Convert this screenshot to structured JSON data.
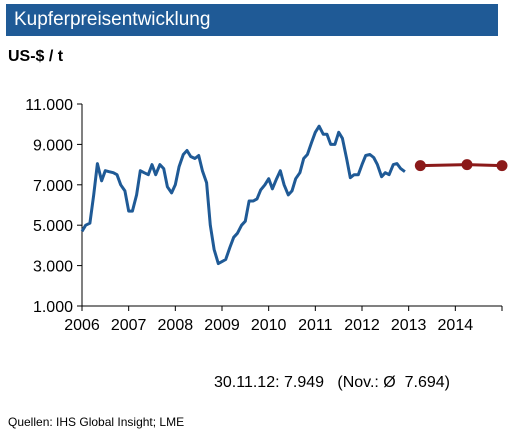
{
  "title": "Kupferpreisentwicklung",
  "unit_label": "US-$ / t",
  "note": "30.11.12: 7.949   (Nov.: Ø  7.694)",
  "source": "Quellen: IHS Global Insight; LME",
  "colors": {
    "title_bg": "#1f5a96",
    "history": "#1f5a96",
    "forecast": "#8b1a1a"
  },
  "chart_data": {
    "type": "line",
    "title": "Kupferpreisentwicklung",
    "ylabel": "US-$ / t",
    "xlim": [
      2006,
      2015
    ],
    "ylim": [
      1000,
      11000
    ],
    "x_ticks": [
      "2006",
      "2007",
      "2008",
      "2009",
      "2010",
      "2011",
      "2012",
      "2013",
      "2014"
    ],
    "y_ticks": [
      "1.000",
      "3.000",
      "5.000",
      "7.000",
      "9.000",
      "11.000"
    ],
    "y_tick_values": [
      1000,
      3000,
      5000,
      7000,
      9000,
      11000
    ],
    "grid": false,
    "series": [
      {
        "style": "line",
        "x": [
          2006.0,
          2006.08,
          2006.17,
          2006.25,
          2006.33,
          2006.42,
          2006.5,
          2006.58,
          2006.67,
          2006.75,
          2006.83,
          2006.92,
          2007.0,
          2007.08,
          2007.17,
          2007.25,
          2007.33,
          2007.42,
          2007.5,
          2007.58,
          2007.67,
          2007.75,
          2007.83,
          2007.92,
          2008.0,
          2008.08,
          2008.17,
          2008.25,
          2008.33,
          2008.42,
          2008.5,
          2008.58,
          2008.67,
          2008.75,
          2008.83,
          2008.92,
          2009.0,
          2009.08,
          2009.17,
          2009.25,
          2009.33,
          2009.42,
          2009.5,
          2009.58,
          2009.67,
          2009.75,
          2009.83,
          2009.92,
          2010.0,
          2010.08,
          2010.17,
          2010.25,
          2010.33,
          2010.42,
          2010.5,
          2010.58,
          2010.67,
          2010.75,
          2010.83,
          2010.92,
          2011.0,
          2011.08,
          2011.17,
          2011.25,
          2011.33,
          2011.42,
          2011.5,
          2011.58,
          2011.67,
          2011.75,
          2011.83,
          2011.92,
          2012.0,
          2012.08,
          2012.17,
          2012.25,
          2012.33,
          2012.42,
          2012.5,
          2012.58,
          2012.67,
          2012.75,
          2012.83,
          2012.92
        ],
        "values": [
          4700,
          5000,
          5100,
          6500,
          8050,
          7200,
          7700,
          7650,
          7600,
          7500,
          7000,
          6700,
          5700,
          5700,
          6500,
          7700,
          7600,
          7500,
          8000,
          7500,
          8000,
          7800,
          6900,
          6600,
          7000,
          7900,
          8500,
          8700,
          8400,
          8300,
          8450,
          7700,
          7100,
          5000,
          3800,
          3100,
          3200,
          3300,
          3900,
          4400,
          4600,
          5000,
          5200,
          6200,
          6200,
          6300,
          6750,
          7000,
          7300,
          6800,
          7300,
          7700,
          7000,
          6500,
          6700,
          7300,
          7600,
          8300,
          8500,
          9100,
          9600,
          9900,
          9500,
          9500,
          9000,
          9000,
          9600,
          9300,
          8300,
          7350,
          7500,
          7500,
          8000,
          8450,
          8500,
          8350,
          8000,
          7400,
          7600,
          7500,
          8000,
          8050,
          7800,
          7650
        ]
      },
      {
        "style": "line-markers",
        "x": [
          2013.25,
          2014.25,
          2015.0
        ],
        "values": [
          7950,
          8000,
          7950
        ]
      }
    ]
  }
}
